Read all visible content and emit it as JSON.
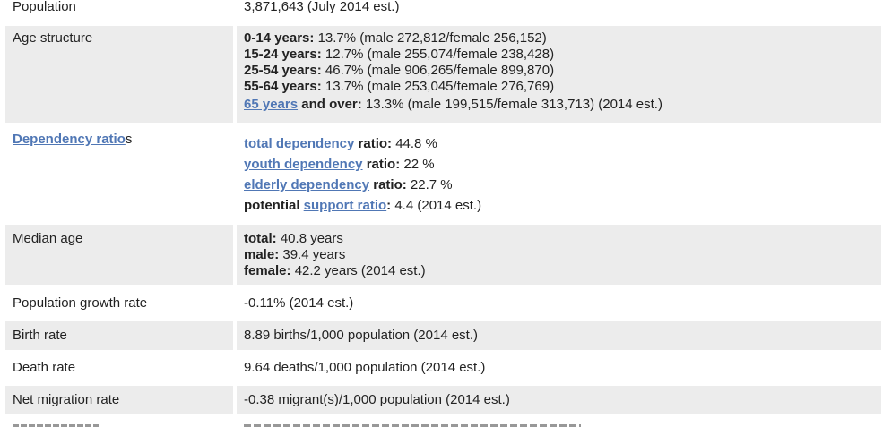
{
  "rows": {
    "population": {
      "label": "Population",
      "value": "3,871,643 (July 2014 est.)"
    },
    "age_structure": {
      "label": "Age structure",
      "l1_b": "0-14 years:",
      "l1": " 13.7% (male 272,812/female 256,152)",
      "l2_b": "15-24 years:",
      "l2": " 12.7% (male 255,074/female 238,428)",
      "l3_b": "25-54 years:",
      "l3": " 46.7% (male 906,265/female 899,870)",
      "l4_b": "55-64 years:",
      "l4": " 13.7% (male 253,045/female 276,769)",
      "l5_link": "65 years",
      "l5_b": " and over:",
      "l5": " 13.3% (male 199,515/female 313,713) (2014 est.)"
    },
    "dependency": {
      "label_link": "Dependency ratio",
      "label_tail": "s",
      "l1_link": "total dependency",
      "l1_b": " ratio:",
      "l1": " 44.8 %",
      "l2_link": "youth dependency",
      "l2_b": " ratio:",
      "l2": " 22 %",
      "l3_link": "elderly dependency",
      "l3_b": " ratio:",
      "l3": " 22.7 %",
      "l4_b": "potential ",
      "l4_link": "support ratio",
      "l4_b2": ":",
      "l4": " 4.4 (2014 est.)"
    },
    "median_age": {
      "label": "Median age",
      "l1_b": "total:",
      "l1": " 40.8 years",
      "l2_b": "male:",
      "l2": " 39.4 years",
      "l3_b": "female:",
      "l3": " 42.2 years (2014 est.)"
    },
    "growth": {
      "label": "Population growth rate",
      "value": "-0.11% (2014 est.)"
    },
    "birth": {
      "label": "Birth rate",
      "value": "8.89 births/1,000 population (2014 est.)"
    },
    "death": {
      "label": "Death rate",
      "value": "9.64 deaths/1,000 population (2014 est.)"
    },
    "migration": {
      "label": "Net migration rate",
      "value": "-0.38 migrant(s)/1,000 population (2014 est.)"
    }
  }
}
